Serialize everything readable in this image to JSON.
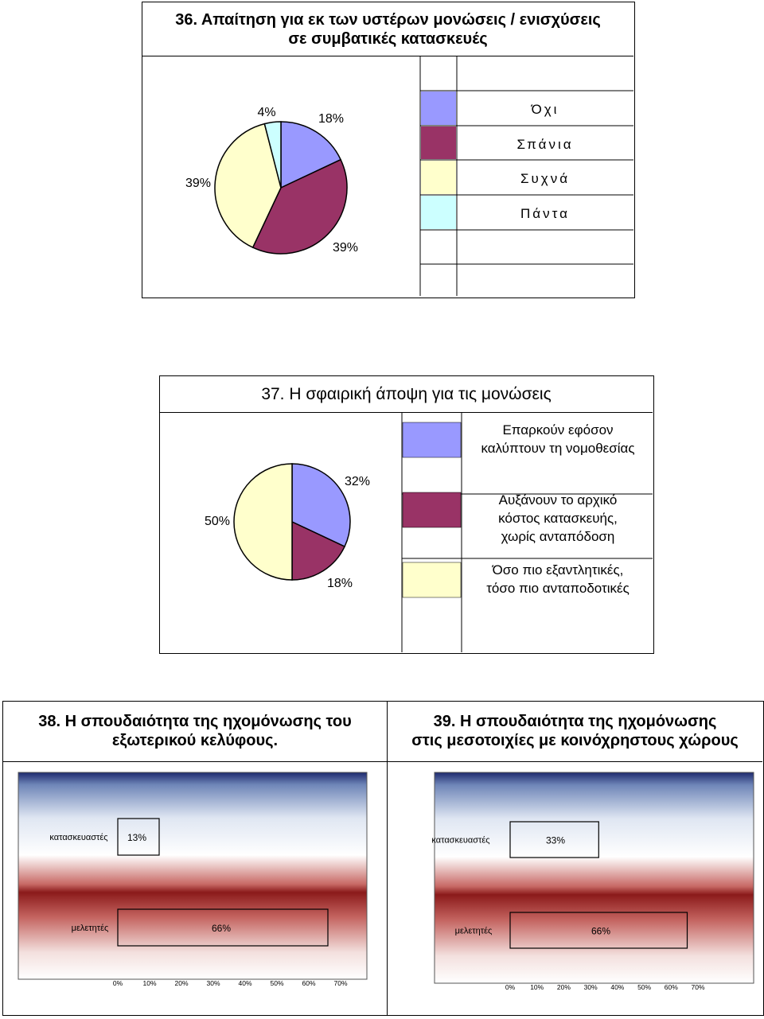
{
  "chart_data": [
    {
      "type": "pie",
      "title": "36. Απαίτηση για εκ των υστέρων μονώσεις / ενισχύσεις σε συμβατικές κατασκευές",
      "categories": [
        "Όχι",
        "Σπάνια",
        "Συχνά",
        "Πάντα"
      ],
      "values": [
        18,
        39,
        39,
        4
      ],
      "data_labels": [
        "18%",
        "39%",
        "39%",
        "4%"
      ],
      "colors": [
        "#9999ff",
        "#993366",
        "#ffffcc",
        "#ccffff"
      ],
      "legend_placement": "right"
    },
    {
      "type": "pie",
      "title": "37. Η σφαιρική άποψη για τις μονώσεις",
      "categories": [
        "Επαρκούν εφόσον καλύπτουν τη νομοθεσίας",
        "Αυξάνουν το αρχικό κόστος κατασκευής, χωρίς ανταπόδοση",
        "Όσο πιο εξαντλητικές, τόσο πιο ανταποδοτικές"
      ],
      "legend_lines": [
        [
          "Επαρκούν εφόσον",
          "καλύπτουν τη νομοθεσίας"
        ],
        [
          "Αυξάνουν το αρχικό",
          "κόστος κατασκευής,",
          "χωρίς ανταπόδοση"
        ],
        [
          "Όσο πιο εξαντλητικές,",
          "τόσο πιο ανταποδοτικές"
        ]
      ],
      "values": [
        32,
        18,
        50
      ],
      "data_labels": [
        "32%",
        "18%",
        "50%"
      ],
      "colors": [
        "#9999ff",
        "#993366",
        "#ffffcc"
      ],
      "legend_placement": "right"
    },
    {
      "type": "bar",
      "orientation": "horizontal",
      "title": "38. Η σπουδαιότητα της ηχομόνωσης του εξωτερικού κελύφους.",
      "title_lines": [
        "38. Η σπουδαιότητα της ηχομόνωσης του",
        "εξωτερικού κελύφους."
      ],
      "categories": [
        "κατασκευαστές",
        "μελετητές"
      ],
      "values": [
        13,
        66
      ],
      "data_labels": [
        "13%",
        "66%"
      ],
      "xlim": [
        0,
        70
      ],
      "ticks": [
        "0%",
        "10%",
        "20%",
        "30%",
        "40%",
        "50%",
        "60%",
        "70%"
      ],
      "bar_color": "#9999ff"
    },
    {
      "type": "bar",
      "orientation": "horizontal",
      "title": "39. Η σπουδαιότητα της ηχομόνωσης στις μεσοτοιχίες με κοινόχρηστους χώρους",
      "title_lines": [
        "39. Η σπουδαιότητα της ηχομόνωσης",
        "στις μεσοτοιχίες με κοινόχρηστους χώρους"
      ],
      "categories": [
        "κατασκευαστές",
        "μελετητές"
      ],
      "values": [
        33,
        66
      ],
      "data_labels": [
        "33%",
        "66%"
      ],
      "xlim": [
        0,
        70
      ],
      "ticks": [
        "0%",
        "10%",
        "20%",
        "30%",
        "40%",
        "50%",
        "60%",
        "70%"
      ],
      "bar_color": "#9999ff"
    }
  ]
}
